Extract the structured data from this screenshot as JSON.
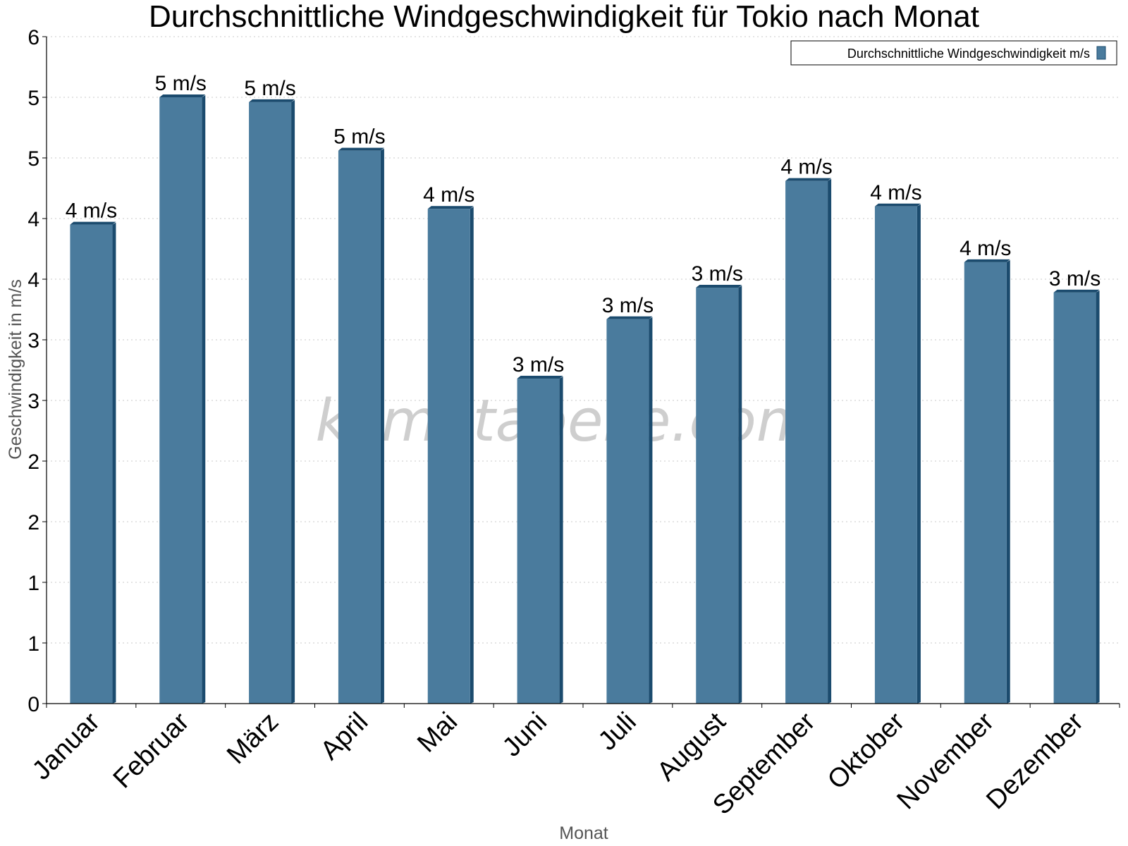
{
  "chart_data": {
    "type": "bar",
    "title": "Durchschnittliche Windgeschwindigkeit für Tokio nach Monat",
    "xlabel": "Monat",
    "ylabel": "Geschwindigkeit in m/s",
    "categories": [
      "Januar",
      "Februar",
      "März",
      "April",
      "Mai",
      "Juni",
      "Juli",
      "August",
      "September",
      "Oktober",
      "November",
      "Dezember"
    ],
    "series": [
      {
        "name": "Durchschnittliche Windgeschwindigkeit m/s",
        "values": [
          3.95,
          5.0,
          4.96,
          4.56,
          4.08,
          2.68,
          3.17,
          3.43,
          4.31,
          4.1,
          3.64,
          3.39
        ],
        "labels": [
          "4 m/s",
          "5 m/s",
          "5 m/s",
          "5 m/s",
          "4 m/s",
          "3 m/s",
          "3 m/s",
          "3 m/s",
          "4 m/s",
          "4 m/s",
          "4 m/s",
          "3 m/s"
        ],
        "color": "#4a7b9d",
        "side_color": "#1b4b6e"
      }
    ],
    "ylim": [
      0,
      5.5
    ],
    "yticks": [
      0,
      0.5,
      1,
      1.5,
      2,
      2.5,
      3,
      3.5,
      4,
      4.5,
      5,
      5.5
    ],
    "ytick_labels": [
      "0",
      "1",
      "1",
      "2",
      "2",
      "3",
      "3",
      "4",
      "4",
      "5",
      "5",
      "6"
    ],
    "grid": true,
    "legend": "top-right",
    "watermark": "klimatabelle.com"
  }
}
